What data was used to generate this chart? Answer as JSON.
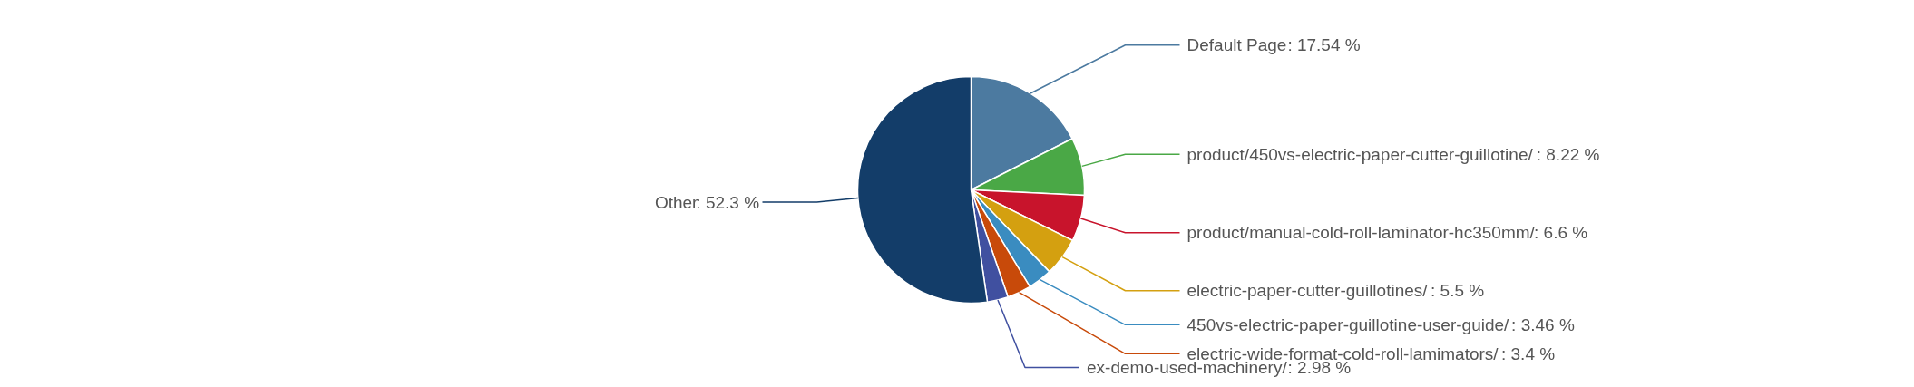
{
  "chart_data": {
    "type": "pie",
    "categories": [
      "Default Page",
      "product/450vs-electric-paper-cutter-guillotine/",
      "product/manual-cold-roll-laminator-hc350mm/",
      "electric-paper-cutter-guillotines/",
      "450vs-electric-paper-guillotine-user-guide/",
      "electric-wide-format-cold-roll-lamimators/",
      "ex-demo-used-machinery/",
      "Other"
    ],
    "values": [
      17.54,
      8.22,
      6.6,
      5.5,
      3.46,
      3.4,
      2.98,
      52.3
    ],
    "value_labels": [
      ": 17.54 %",
      ": 8.22 %",
      ": 6.6 %",
      ": 5.5 %",
      ": 3.46 %",
      ": 3.4 %",
      ": 2.98 %",
      ": 52.3 %"
    ],
    "colors": [
      "#4c7aa0",
      "#4aa846",
      "#c8142c",
      "#d4a010",
      "#3a8cc0",
      "#c84a0a",
      "#4050a0",
      "#133d69"
    ]
  }
}
